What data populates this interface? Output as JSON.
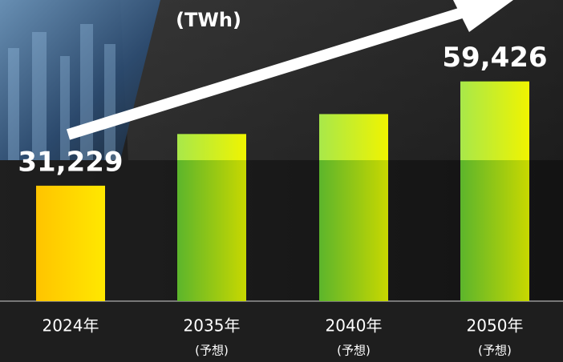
{
  "chart_data": {
    "type": "bar",
    "unit": "(TWh)",
    "categories": [
      "2024年",
      "2035年",
      "2040年",
      "2050年"
    ],
    "category_notes": [
      null,
      "(予想)",
      "(予想)",
      "(予想)"
    ],
    "values": [
      31229,
      45200,
      50600,
      59426
    ],
    "value_labels": [
      "31,229",
      null,
      null,
      "59,426"
    ],
    "colors": [
      "#ffd000",
      "#8ccc1c",
      "#8ccc1c",
      "#8ccc1c"
    ],
    "ylim": [
      0,
      65000
    ]
  }
}
